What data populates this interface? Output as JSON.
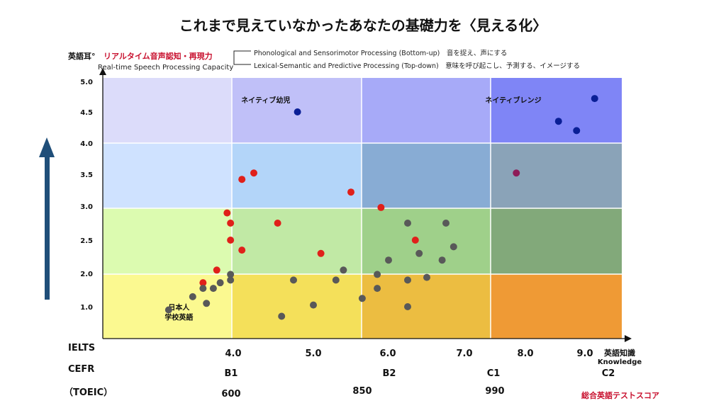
{
  "title": "これまで見えていなかったあなたの基礎力を〈見える化〉",
  "y_axis": {
    "label_main": "英語耳°",
    "label_red": "リアルタイム音声認知・再現力",
    "label_en": "Real-time Speech Processing Capacity"
  },
  "legend": {
    "bottom_up": "Phonological and Sensorimotor Processing (Bottom-up)　音を捉え、声にする",
    "top_down": "Lexical-Semantic and Predictive Processing (Top-down)　意味を呼び起こし、予測する、イメージする"
  },
  "x_axis": {
    "label_ja": "英語知識",
    "label_en": "Knowledge",
    "ticks": [
      "4.0",
      "5.0",
      "6.0",
      "7.0",
      "8.0",
      "9.0"
    ]
  },
  "rows": {
    "ielts": "IELTS",
    "cefr": "CEFR",
    "toeic": "（TOEIC）",
    "cefr_levels": [
      "B1",
      "B2",
      "C1",
      "C2"
    ],
    "toeic_scores": [
      "600",
      "850",
      "990"
    ],
    "score_label": "総合英語テストスコア"
  },
  "colors": {
    "red_point": "#e0201a",
    "gray_point": "#595959",
    "blue_point": "#0a1f96",
    "purple_point": "#8e1c58",
    "arrow": "#1f4e79",
    "col1": [
      "#dcdcfa",
      "#cfe2ff",
      "#dcfbb0",
      "#fbf990"
    ],
    "col2": [
      "#c0c0f8",
      "#b3d5f9",
      "#c1e9a5",
      "#f4e05a"
    ],
    "col3": [
      "#a7aaf8",
      "#88acd4",
      "#9fd08a",
      "#ecbd41"
    ],
    "col4": [
      "#7f85f6",
      "#8aa3b8",
      "#82a97a",
      "#ef9a35"
    ]
  },
  "chart_data": {
    "type": "scatter",
    "title": "これまで見えていなかったあなたの基礎力を〈見える化〉",
    "xlabel": "英語知識 Knowledge",
    "ylabel": "英語耳° リアルタイム音声認知・再現力",
    "x_ticks": [
      4.0,
      5.0,
      6.0,
      7.0,
      8.0,
      9.0
    ],
    "y_ticks": [
      1.0,
      2.0,
      2.5,
      3.0,
      3.5,
      4.0,
      4.5,
      5.0
    ],
    "ylim": [
      0.5,
      5.0
    ],
    "region_labels": [
      {
        "text": "ネイティブ幼児",
        "x": 4.4,
        "y": 4.65
      },
      {
        "text": "ネイティブレンジ",
        "x": 7.8,
        "y": 4.65
      },
      {
        "text": "日本人\n学校英語",
        "x": 3.2,
        "y": 0.95
      }
    ],
    "series": [
      {
        "color": "red",
        "points": [
          [
            3.55,
            1.72
          ],
          [
            3.75,
            2.05
          ],
          [
            3.9,
            2.9
          ],
          [
            3.95,
            2.75
          ],
          [
            3.95,
            2.5
          ],
          [
            4.1,
            2.35
          ],
          [
            4.1,
            3.42
          ],
          [
            4.25,
            3.52
          ],
          [
            4.55,
            2.75
          ],
          [
            5.1,
            2.3
          ],
          [
            5.5,
            3.22
          ],
          [
            5.9,
            2.98
          ],
          [
            6.35,
            2.5
          ]
        ]
      },
      {
        "color": "gray",
        "points": [
          [
            3.05,
            0.95
          ],
          [
            3.4,
            1.3
          ],
          [
            3.55,
            1.55
          ],
          [
            3.6,
            1.1
          ],
          [
            3.7,
            1.55
          ],
          [
            3.8,
            1.72
          ],
          [
            3.95,
            1.97
          ],
          [
            3.95,
            1.8
          ],
          [
            4.6,
            0.85
          ],
          [
            4.75,
            1.8
          ],
          [
            5.0,
            1.05
          ],
          [
            5.3,
            1.8
          ],
          [
            5.4,
            2.05
          ],
          [
            5.65,
            1.25
          ],
          [
            5.85,
            1.97
          ],
          [
            5.85,
            1.55
          ],
          [
            6.0,
            2.2
          ],
          [
            6.25,
            2.75
          ],
          [
            6.25,
            1.8
          ],
          [
            6.25,
            1.0
          ],
          [
            6.4,
            2.3
          ],
          [
            6.5,
            1.88
          ],
          [
            6.7,
            2.2
          ],
          [
            6.75,
            2.75
          ],
          [
            6.85,
            2.4
          ]
        ]
      },
      {
        "color": "blue",
        "points": [
          [
            4.8,
            4.5
          ],
          [
            8.55,
            4.35
          ],
          [
            8.85,
            4.2
          ],
          [
            9.15,
            4.72
          ]
        ]
      },
      {
        "color": "purple",
        "points": [
          [
            7.85,
            3.52
          ]
        ]
      }
    ]
  }
}
